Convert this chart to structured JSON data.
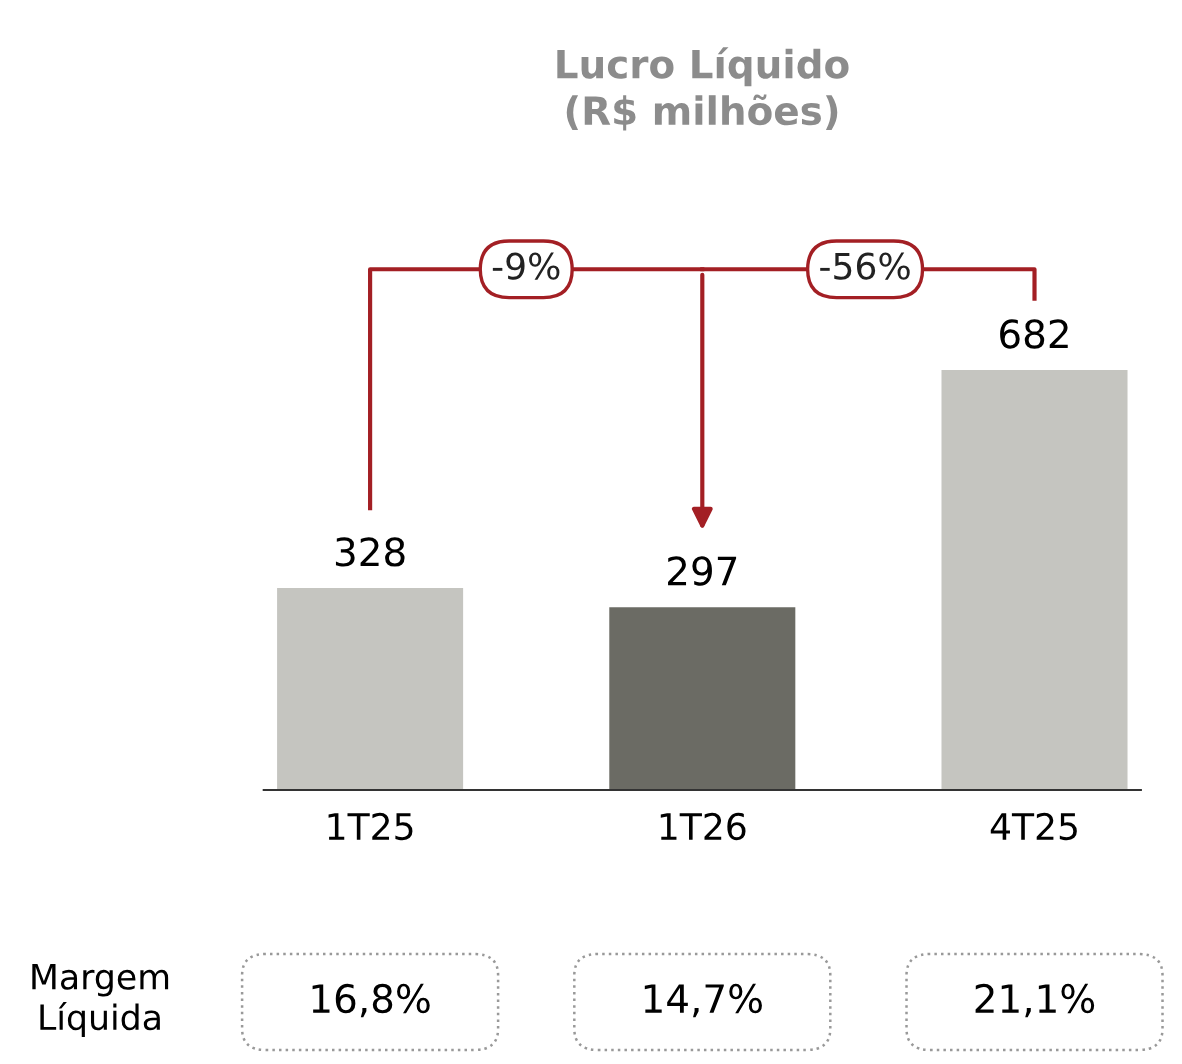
{
  "chart_data": {
    "type": "bar",
    "title": "Lucro Líquido\n(R$ milhões)",
    "categories": [
      "1T25",
      "1T26",
      "4T25"
    ],
    "values": [
      328,
      297,
      682
    ],
    "colors": [
      "#c5c5c0",
      "#6b6b64",
      "#c5c5c0"
    ],
    "data_labels": true,
    "grid": false,
    "legend": false,
    "annotations": [
      "-9%",
      "-56%",
      "Margem\nLíquida",
      "16,8%",
      "14,7%",
      "21,1%"
    ]
  }
}
